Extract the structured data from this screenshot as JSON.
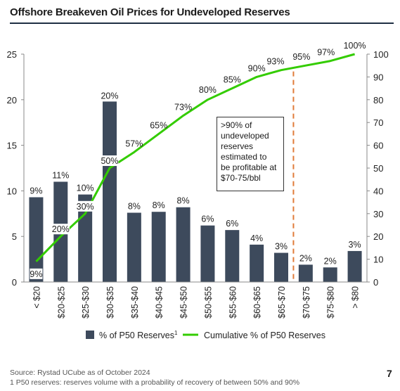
{
  "title": "Offshore Breakeven Oil Prices for Undeveloped Reserves",
  "footer": {
    "source": "Source: Rystad UCube as of October 2024",
    "note": "1 P50 reserves: reserves volume with a probability of recovery of between 50% and 90%",
    "page": "7"
  },
  "annotation": {
    "lines": [
      ">90% of",
      "undeveloped",
      "reserves",
      "estimated to",
      "be profitable at",
      "$70-75/bbl"
    ]
  },
  "chart_data": {
    "type": "bar",
    "categories": [
      "< $20",
      "$20-$25",
      "$25-$30",
      "$30-$35",
      "$35-$40",
      "$40-$45",
      "$45-$50",
      "$50-$55",
      "$55-$60",
      "$60-$65",
      "$65-$70",
      "$70-$75",
      "$75-$80",
      "> $80"
    ],
    "series": [
      {
        "name": "% of P50 Reserves",
        "name_superscript": "1",
        "type": "bar",
        "axis": "left",
        "color": "#3d4a5c",
        "values": [
          9.3,
          11.0,
          9.6,
          19.8,
          7.6,
          7.7,
          8.2,
          6.2,
          5.7,
          4.1,
          3.2,
          1.9,
          1.6,
          3.4
        ],
        "labels": [
          "9%",
          "11%",
          "10%",
          "20%",
          "8%",
          "8%",
          "8%",
          "6%",
          "6%",
          "4%",
          "3%",
          "2%",
          "2%",
          "3%"
        ]
      },
      {
        "name": "Cumulative % of P50 Reserves",
        "type": "line",
        "axis": "right",
        "color": "#33cc00",
        "values": [
          9,
          20,
          30,
          50,
          57,
          65,
          73,
          80,
          85,
          90,
          93,
          95,
          97,
          100
        ],
        "labels": [
          "9%",
          "20%",
          "30%",
          "50%",
          "57%",
          "65%",
          "73%",
          "80%",
          "85%",
          "90%",
          "93%",
          "95%",
          "97%",
          "100%"
        ]
      }
    ],
    "y_left": {
      "min": 0,
      "max": 25,
      "ticks": [
        "0",
        "5",
        "10",
        "15",
        "20",
        "25"
      ]
    },
    "y_right": {
      "min": 0,
      "max": 100,
      "ticks": [
        "0",
        "10",
        "20",
        "30",
        "40",
        "50",
        "60",
        "70",
        "80",
        "90",
        "100"
      ]
    },
    "grid": false,
    "legend": "bottom",
    "reference_line": {
      "between": [
        "$65-$70",
        "$70-$75"
      ],
      "color": "#e07b39",
      "style": "dashed"
    }
  }
}
